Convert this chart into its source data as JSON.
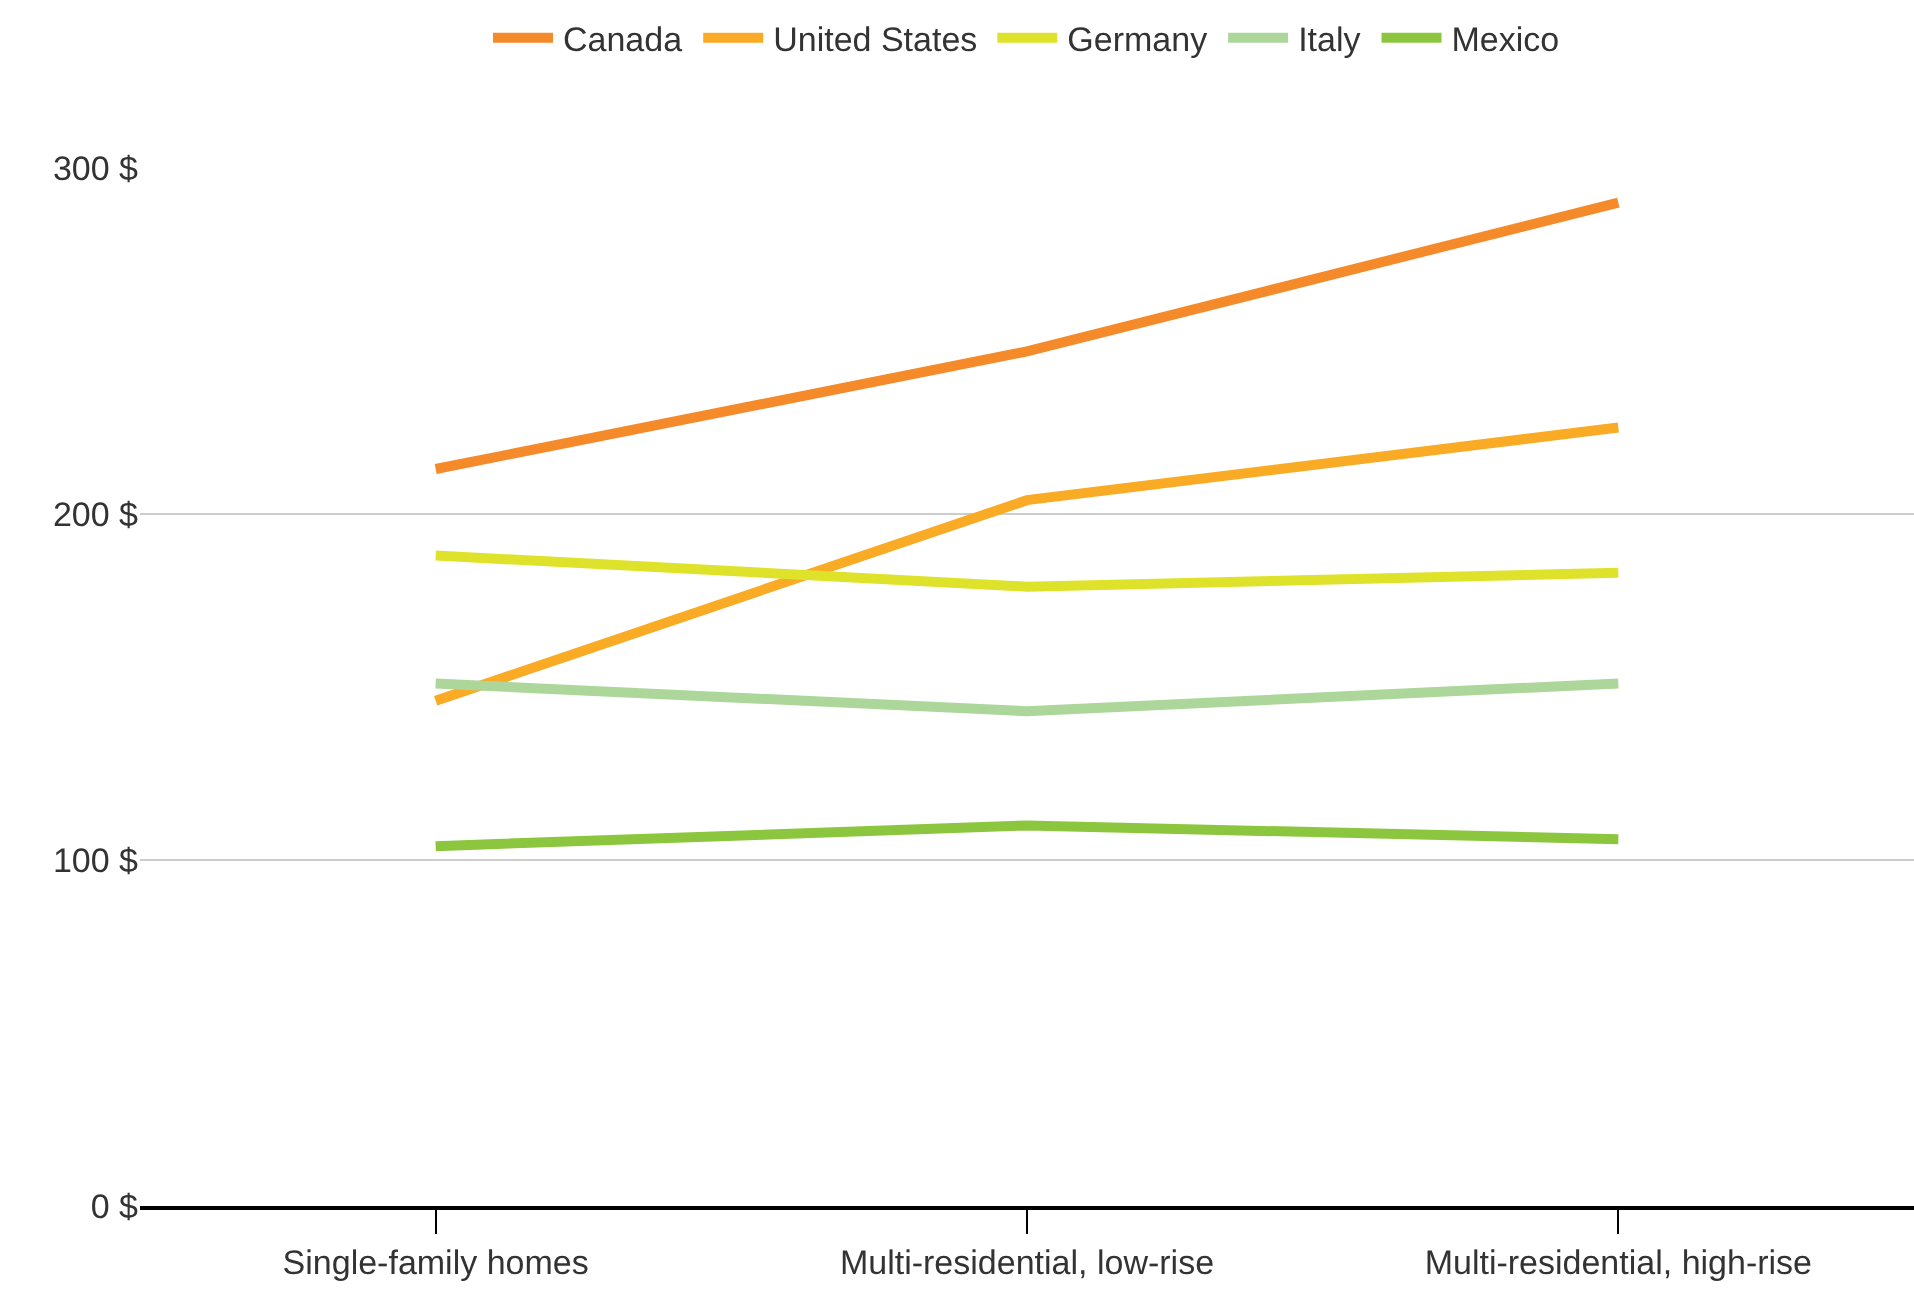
{
  "chart_data": {
    "type": "line",
    "categories": [
      "Single-family homes",
      "Multi-residential, low-rise",
      "Multi-residential, high-rise"
    ],
    "series": [
      {
        "name": "Canada",
        "color": "#f58a2a",
        "values": [
          213,
          247,
          290
        ]
      },
      {
        "name": "United States",
        "color": "#f9ab25",
        "values": [
          146,
          204,
          225
        ]
      },
      {
        "name": "Germany",
        "color": "#dfe22b",
        "values": [
          188,
          179,
          183
        ]
      },
      {
        "name": "Italy",
        "color": "#acd69a",
        "values": [
          151,
          143,
          151
        ]
      },
      {
        "name": "Mexico",
        "color": "#8cc63f",
        "values": [
          104,
          110,
          106
        ]
      }
    ],
    "ylim": [
      0,
      300
    ],
    "yticks": [
      {
        "value": 0,
        "label": "0 $"
      },
      {
        "value": 100,
        "label": "100 $"
      },
      {
        "value": 200,
        "label": "200 $"
      },
      {
        "value": 300,
        "label": "300 $"
      }
    ],
    "grid": "y",
    "legend": "top",
    "marker": "none",
    "line_style": "solid"
  }
}
